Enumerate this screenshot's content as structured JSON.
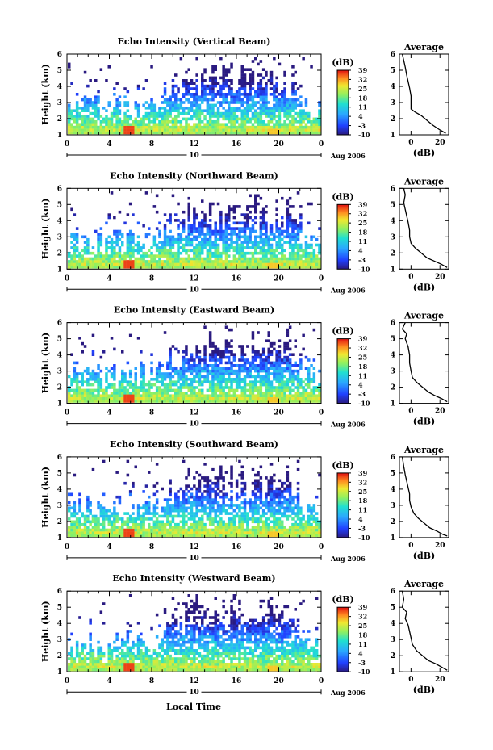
{
  "figure": {
    "xlabel": "Local Time",
    "date_label": "Aug 2006",
    "day_label": "10"
  },
  "chart_data": [
    {
      "type": "heatmap",
      "title": "Echo Intensity (Vertical Beam)",
      "ylabel": "Height (km)",
      "x_ticks": [
        "0",
        "4",
        "8",
        "12",
        "16",
        "20",
        "0"
      ],
      "y_ticks": [
        "1",
        "2",
        "3",
        "4",
        "5",
        "6"
      ],
      "xlim": [
        0,
        24
      ],
      "ylim": [
        1,
        6
      ],
      "colorbar": {
        "label": "(dB)",
        "ticks": [
          "39",
          "32",
          "25",
          "18",
          "11",
          "4",
          "-3",
          "-10"
        ],
        "range": [
          -10,
          39
        ]
      },
      "profile": {
        "title": "Average",
        "xlabel": "(dB)",
        "x_ticks": [
          "0",
          "20"
        ],
        "xlim": [
          -8,
          26
        ],
        "points": [
          [
            -6,
            6
          ],
          [
            -5,
            5.6
          ],
          [
            -4,
            5.2
          ],
          [
            -3,
            4.7
          ],
          [
            -2,
            4.3
          ],
          [
            -1,
            3.9
          ],
          [
            0,
            3.4
          ],
          [
            0,
            2.8
          ],
          [
            0,
            2.6
          ],
          [
            3,
            2.4
          ],
          [
            7,
            2.2
          ],
          [
            11,
            1.9
          ],
          [
            15,
            1.6
          ],
          [
            20,
            1.3
          ],
          [
            24,
            1.1
          ]
        ]
      }
    },
    {
      "type": "heatmap",
      "title": "Echo Intensity (Northward Beam)",
      "ylabel": "Height (km)",
      "x_ticks": [
        "0",
        "4",
        "8",
        "12",
        "16",
        "20",
        "0"
      ],
      "y_ticks": [
        "1",
        "2",
        "3",
        "4",
        "5",
        "6"
      ],
      "xlim": [
        0,
        24
      ],
      "ylim": [
        1,
        6
      ],
      "colorbar": {
        "label": "(dB)",
        "ticks": [
          "39",
          "32",
          "25",
          "18",
          "11",
          "4",
          "-3",
          "-10"
        ],
        "range": [
          -10,
          39
        ]
      },
      "profile": {
        "title": "Average",
        "xlabel": "(dB)",
        "x_ticks": [
          "0",
          "20"
        ],
        "xlim": [
          -8,
          26
        ],
        "points": [
          [
            -5,
            6
          ],
          [
            -4,
            5.6
          ],
          [
            -5,
            5.1
          ],
          [
            -4,
            4.7
          ],
          [
            -3,
            4.3
          ],
          [
            -2,
            3.9
          ],
          [
            -1,
            3.4
          ],
          [
            -1,
            3.0
          ],
          [
            0,
            2.6
          ],
          [
            3,
            2.3
          ],
          [
            7,
            2.0
          ],
          [
            11,
            1.7
          ],
          [
            16,
            1.5
          ],
          [
            21,
            1.3
          ],
          [
            25,
            1.1
          ]
        ]
      }
    },
    {
      "type": "heatmap",
      "title": "Echo Intensity (Eastward Beam)",
      "ylabel": "Height (km)",
      "x_ticks": [
        "0",
        "4",
        "8",
        "12",
        "16",
        "20",
        "0"
      ],
      "y_ticks": [
        "1",
        "2",
        "3",
        "4",
        "5",
        "6"
      ],
      "xlim": [
        0,
        24
      ],
      "ylim": [
        1,
        6
      ],
      "colorbar": {
        "label": "(dB)",
        "ticks": [
          "39",
          "32",
          "25",
          "18",
          "11",
          "4",
          "-3",
          "-10"
        ],
        "range": [
          -10,
          39
        ]
      },
      "profile": {
        "title": "Average",
        "xlabel": "(dB)",
        "x_ticks": [
          "0",
          "20"
        ],
        "xlim": [
          -8,
          26
        ],
        "points": [
          [
            -4,
            6
          ],
          [
            -6,
            5.6
          ],
          [
            -3,
            5.3
          ],
          [
            -4,
            5.0
          ],
          [
            -2,
            4.5
          ],
          [
            -1,
            4.0
          ],
          [
            -1,
            3.5
          ],
          [
            0,
            3.0
          ],
          [
            1,
            2.6
          ],
          [
            4,
            2.3
          ],
          [
            8,
            2.0
          ],
          [
            12,
            1.7
          ],
          [
            16,
            1.5
          ],
          [
            21,
            1.3
          ],
          [
            25,
            1.1
          ]
        ]
      }
    },
    {
      "type": "heatmap",
      "title": "Echo Intensity (Southward Beam)",
      "ylabel": "Height (km)",
      "x_ticks": [
        "0",
        "4",
        "8",
        "12",
        "16",
        "20",
        "0"
      ],
      "y_ticks": [
        "1",
        "2",
        "3",
        "4",
        "5",
        "6"
      ],
      "xlim": [
        0,
        24
      ],
      "ylim": [
        1,
        6
      ],
      "colorbar": {
        "label": "(dB)",
        "ticks": [
          "39",
          "32",
          "25",
          "18",
          "11",
          "4",
          "-3",
          "-10"
        ],
        "range": [
          -10,
          39
        ]
      },
      "profile": {
        "title": "Average",
        "xlabel": "(dB)",
        "x_ticks": [
          "0",
          "20"
        ],
        "xlim": [
          -8,
          26
        ],
        "points": [
          [
            -6,
            6
          ],
          [
            -5,
            5.4
          ],
          [
            -4,
            4.9
          ],
          [
            -3,
            4.5
          ],
          [
            -2,
            4.1
          ],
          [
            -1,
            3.7
          ],
          [
            -1,
            3.3
          ],
          [
            0,
            2.9
          ],
          [
            2,
            2.5
          ],
          [
            5,
            2.2
          ],
          [
            9,
            1.9
          ],
          [
            13,
            1.6
          ],
          [
            18,
            1.4
          ],
          [
            22,
            1.2
          ],
          [
            25,
            1.1
          ]
        ]
      }
    },
    {
      "type": "heatmap",
      "title": "Echo Intensity (Westward Beam)",
      "ylabel": "Height (km)",
      "x_ticks": [
        "0",
        "4",
        "8",
        "12",
        "16",
        "20",
        "0"
      ],
      "y_ticks": [
        "1",
        "2",
        "3",
        "4",
        "5",
        "6"
      ],
      "xlim": [
        0,
        24
      ],
      "ylim": [
        1,
        6
      ],
      "colorbar": {
        "label": "(dB)",
        "ticks": [
          "39",
          "32",
          "25",
          "18",
          "11",
          "4",
          "-3",
          "-10"
        ],
        "range": [
          -10,
          39
        ]
      },
      "profile": {
        "title": "Average",
        "xlabel": "(dB)",
        "x_ticks": [
          "0",
          "20"
        ],
        "xlim": [
          -8,
          26
        ],
        "points": [
          [
            -6,
            6
          ],
          [
            -5,
            5.5
          ],
          [
            -6,
            5.0
          ],
          [
            -3,
            4.7
          ],
          [
            -4,
            4.3
          ],
          [
            -2,
            3.9
          ],
          [
            -1,
            3.5
          ],
          [
            0,
            3.1
          ],
          [
            1,
            2.7
          ],
          [
            4,
            2.3
          ],
          [
            8,
            2.0
          ],
          [
            12,
            1.7
          ],
          [
            17,
            1.5
          ],
          [
            21,
            1.3
          ],
          [
            25,
            1.1
          ]
        ]
      }
    }
  ]
}
